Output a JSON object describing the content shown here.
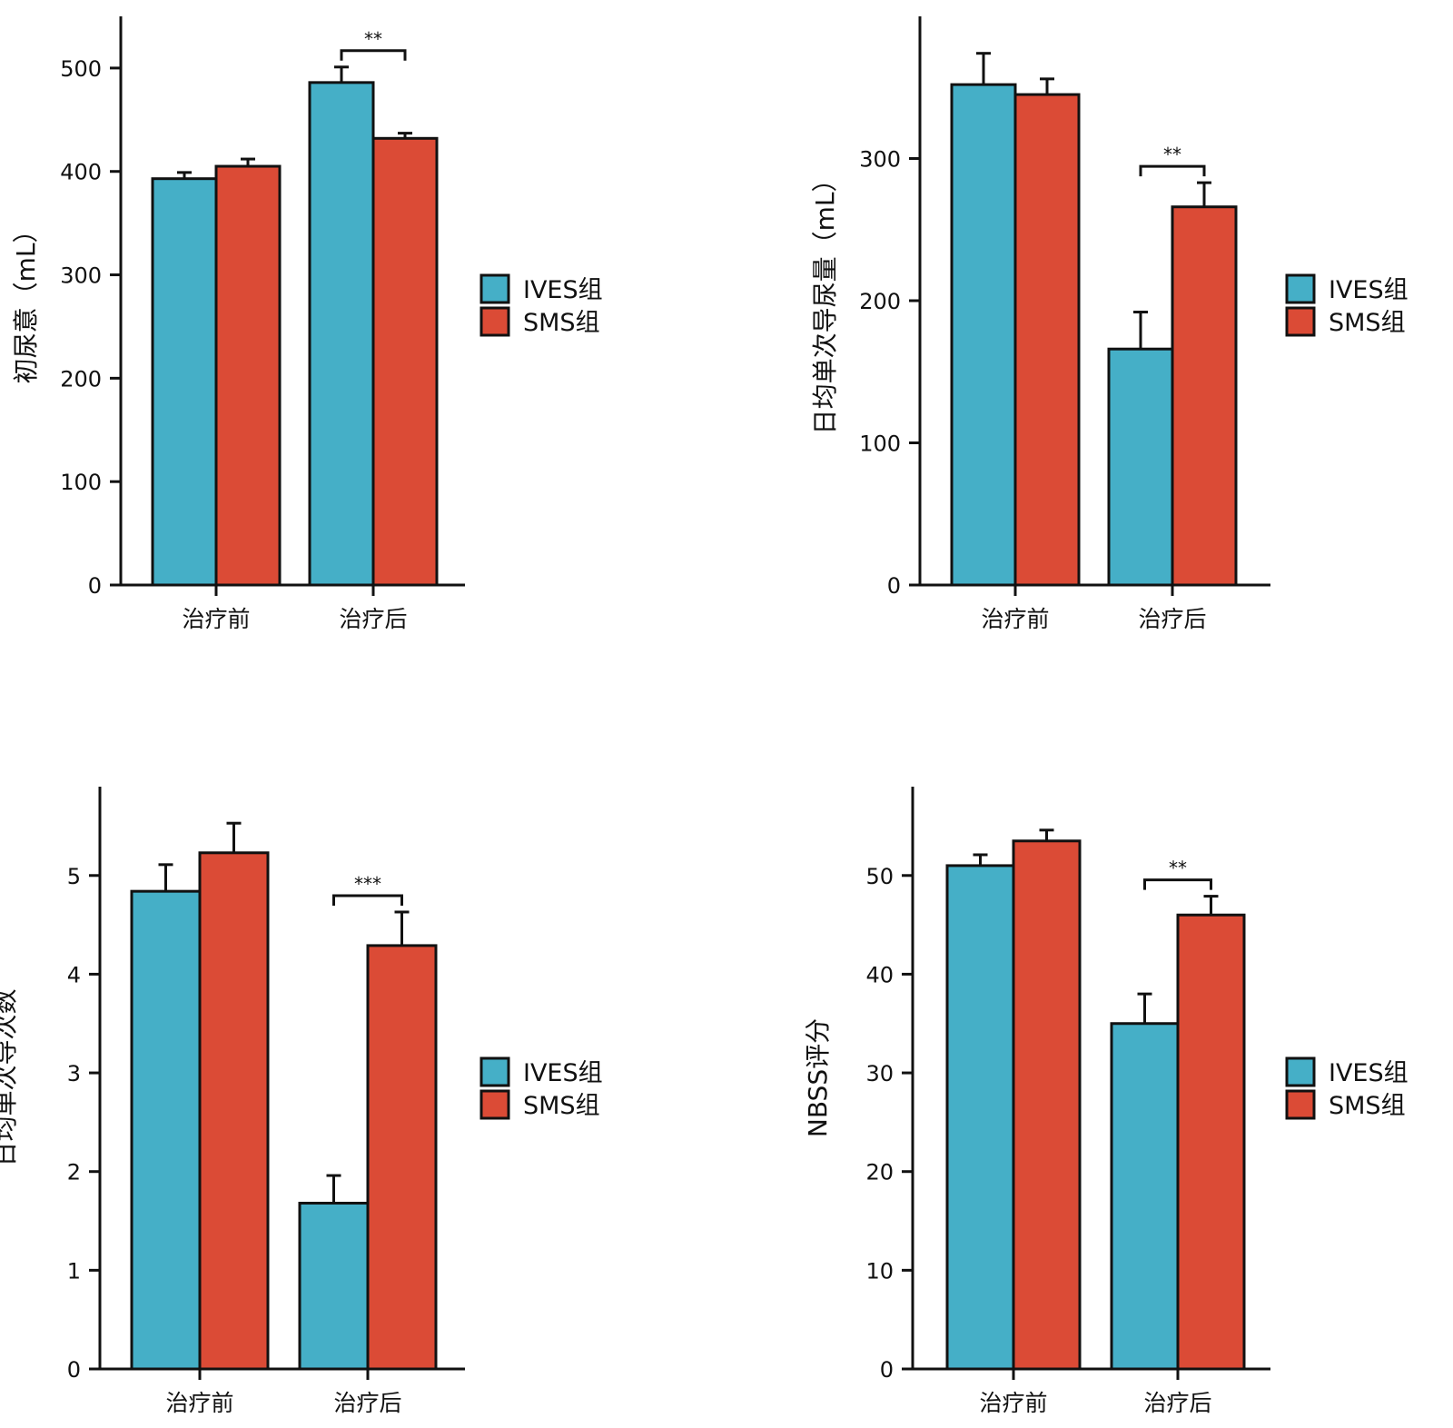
{
  "chart_data": [
    {
      "type": "bar",
      "ylabel": "初尿意（mL）",
      "categories": [
        "治疗前",
        "治疗后"
      ],
      "ylim": [
        0,
        550
      ],
      "yticks": [
        0,
        100,
        200,
        300,
        400,
        500
      ],
      "series": [
        {
          "name": "IVES组",
          "color": "#45afc7",
          "values": [
            393,
            486
          ],
          "errors": [
            6,
            15
          ]
        },
        {
          "name": "SMS组",
          "color": "#db4b36",
          "values": [
            405,
            432
          ],
          "errors": [
            7,
            5
          ]
        }
      ],
      "significance": [
        {
          "category_index": 1,
          "label": "**"
        }
      ],
      "legend": [
        "IVES组",
        "SMS组"
      ],
      "legend_position": "right"
    },
    {
      "type": "bar",
      "ylabel": "日均单次导尿量（mL）",
      "categories": [
        "治疗前",
        "治疗后"
      ],
      "ylim": [
        0,
        400
      ],
      "yticks": [
        0,
        100,
        200,
        300
      ],
      "series": [
        {
          "name": "IVES组",
          "color": "#45afc7",
          "values": [
            352,
            166
          ],
          "errors": [
            22,
            26
          ]
        },
        {
          "name": "SMS组",
          "color": "#db4b36",
          "values": [
            345,
            266
          ],
          "errors": [
            11,
            17
          ]
        }
      ],
      "significance": [
        {
          "category_index": 1,
          "label": "**"
        }
      ],
      "legend": [
        "IVES组",
        "SMS组"
      ],
      "legend_position": "right"
    },
    {
      "type": "bar",
      "ylabel": "日均单次导次数",
      "categories": [
        "治疗前",
        "治疗后"
      ],
      "ylim": [
        0,
        5.9
      ],
      "yticks": [
        0,
        1,
        2,
        3,
        4,
        5
      ],
      "series": [
        {
          "name": "IVES组",
          "color": "#45afc7",
          "values": [
            4.84,
            1.68
          ],
          "errors": [
            0.27,
            0.28
          ]
        },
        {
          "name": "SMS组",
          "color": "#db4b36",
          "values": [
            5.23,
            4.29
          ],
          "errors": [
            0.3,
            0.34
          ]
        }
      ],
      "significance": [
        {
          "category_index": 1,
          "label": "***"
        }
      ],
      "legend": [
        "IVES组",
        "SMS组"
      ],
      "legend_position": "right"
    },
    {
      "type": "bar",
      "ylabel": "NBSS评分",
      "categories": [
        "治疗前",
        "治疗后"
      ],
      "ylim": [
        0,
        59
      ],
      "yticks": [
        0,
        10,
        20,
        30,
        40,
        50
      ],
      "series": [
        {
          "name": "IVES组",
          "color": "#45afc7",
          "values": [
            51,
            35
          ],
          "errors": [
            1.1,
            3
          ]
        },
        {
          "name": "SMS组",
          "color": "#db4b36",
          "values": [
            53.5,
            46
          ],
          "errors": [
            1.1,
            1.9
          ]
        }
      ],
      "significance": [
        {
          "category_index": 1,
          "label": "**"
        }
      ],
      "legend": [
        "IVES组",
        "SMS组"
      ],
      "legend_position": "right"
    }
  ]
}
